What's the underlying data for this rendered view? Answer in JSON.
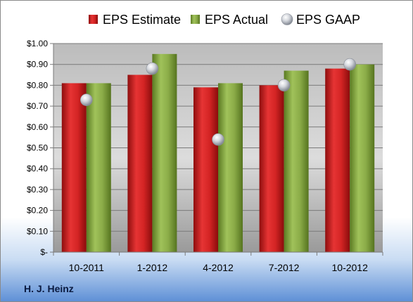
{
  "chart_data": {
    "type": "bar",
    "categories": [
      "10-2011",
      "1-2012",
      "4-2012",
      "7-2012",
      "10-2012"
    ],
    "series": [
      {
        "name": "EPS Estimate",
        "kind": "bar",
        "color": "#d42626",
        "values": [
          0.81,
          0.85,
          0.79,
          0.8,
          0.88
        ]
      },
      {
        "name": "EPS Actual",
        "kind": "bar",
        "color": "#86a844",
        "values": [
          0.81,
          0.95,
          0.81,
          0.87,
          0.9
        ]
      },
      {
        "name": "EPS GAAP",
        "kind": "scatter",
        "color": "#c0c4cc",
        "values": [
          0.73,
          0.88,
          0.54,
          0.8,
          0.9
        ]
      }
    ],
    "yticks": [
      "$-",
      "$0.10",
      "$0.20",
      "$0.30",
      "$0.40",
      "$0.50",
      "$0.60",
      "$0.70",
      "$0.80",
      "$0.90",
      "$1.00"
    ],
    "ylim": [
      0,
      1.0
    ],
    "grid": true,
    "legend_position": "top",
    "company": "H. J. Heinz"
  }
}
